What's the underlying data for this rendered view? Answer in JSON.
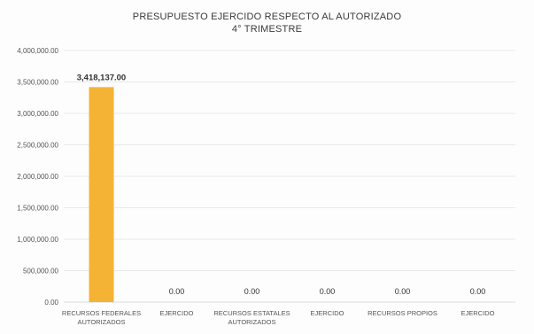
{
  "chart_data": {
    "type": "bar",
    "title_line1": "PRESUPUESTO EJERCIDO RESPECTO AL AUTORIZADO",
    "title_line2": "4° TRIMESTRE",
    "categories": [
      [
        "RECURSOS FEDERALES",
        "AUTORIZADOS"
      ],
      [
        "EJERCIDO"
      ],
      [
        "RECURSOS ESTATALES",
        "AUTORIZADOS"
      ],
      [
        "EJERCIDO"
      ],
      [
        "RECURSOS PROPIOS"
      ],
      [
        "EJERCIDO"
      ]
    ],
    "values": [
      3418137.0,
      0,
      0,
      0,
      0,
      0
    ],
    "data_labels": [
      "3,418,137.00",
      "0.00",
      "0.00",
      "0.00",
      "0.00",
      "0.00"
    ],
    "ylim": [
      0,
      4000000
    ],
    "yticks": [
      0,
      500000,
      1000000,
      1500000,
      2000000,
      2500000,
      3000000,
      3500000,
      4000000
    ],
    "ytick_labels": [
      "0.00",
      "500,000.00",
      "1,000,000.00",
      "1,500,000.00",
      "2,000,000.00",
      "2,500,000.00",
      "3,000,000.00",
      "3,500,000.00",
      "4,000,000.00"
    ],
    "grid": true,
    "bar_color": "#f5b335",
    "xlabel": "",
    "ylabel": ""
  }
}
